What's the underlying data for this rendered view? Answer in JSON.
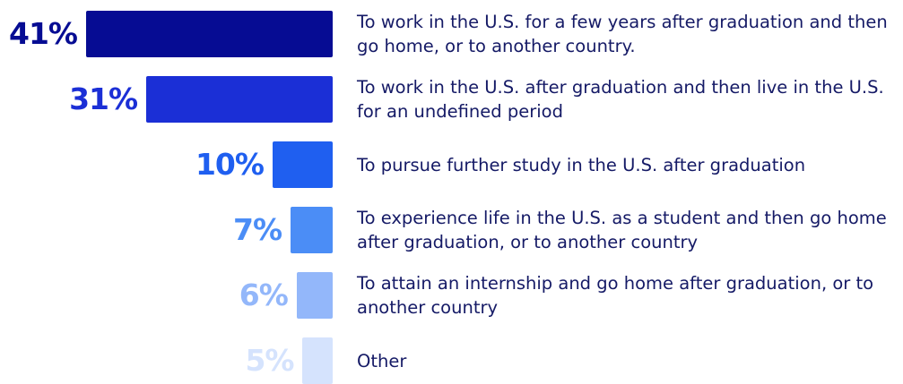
{
  "chart_data": {
    "type": "bar",
    "orientation": "horizontal",
    "categories": [
      "To work in the U.S. for a few years after graduation and then go home, or to another country.",
      "To work in the U.S. after graduation and then live in the U.S. for an undefined period",
      "To pursue further study in the U.S. after graduation",
      "To experience life in the U.S. as a student and then go home after graduation, or to another country",
      "To attain an internship and go home after graduation, or to another country",
      "Other"
    ],
    "values": [
      41,
      31,
      10,
      7,
      6,
      5
    ],
    "value_labels": [
      "41%",
      "31%",
      "10%",
      "7%",
      "6%",
      "5%"
    ],
    "colors": [
      "#060c93",
      "#1b2fd6",
      "#1f5ff0",
      "#4b8df6",
      "#93b7fa",
      "#d5e3fd"
    ]
  }
}
